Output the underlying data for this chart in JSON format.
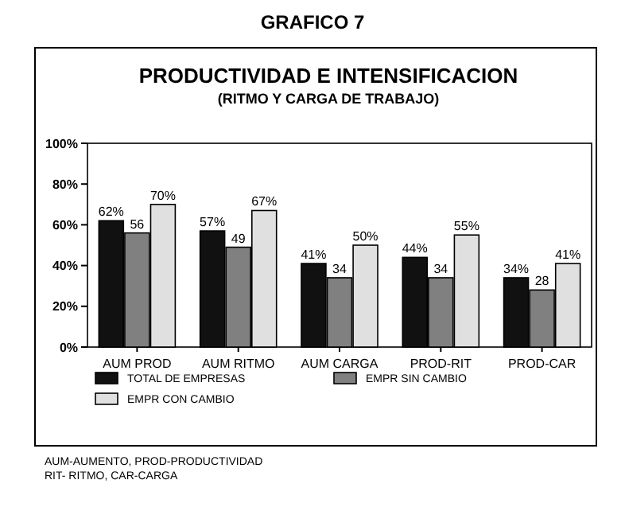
{
  "chart_data": {
    "type": "bar",
    "title": "PRODUCTIVIDAD E INTENSIFICACION",
    "subtitle": "(RITMO Y CARGA DE TRABAJO)",
    "annotations": [
      "GRAFICO 7",
      "AUM-AUMENTO, PROD-PRODUCTIVIDAD",
      "RIT- RITMO, CAR-CARGA"
    ],
    "categories": [
      "AUM PROD",
      "AUM RITMO",
      "AUM CARGA",
      "PROD-RIT",
      "PROD-CAR"
    ],
    "series": [
      {
        "name": "TOTAL DE EMPRESAS",
        "color": "#111111",
        "values": [
          62,
          57,
          41,
          44,
          34
        ],
        "value_labels": [
          "62%",
          "57%",
          "41%",
          "44%",
          "34%"
        ]
      },
      {
        "name": "EMPR SIN CAMBIO",
        "color": "#808080",
        "values": [
          56,
          49,
          34,
          34,
          28
        ],
        "value_labels": [
          "56",
          "49",
          "34",
          "34",
          "28"
        ]
      },
      {
        "name": "EMPR CON CAMBIO",
        "color": "#e0e0e0",
        "values": [
          70,
          67,
          50,
          55,
          41
        ],
        "value_labels": [
          "70%",
          "67%",
          "50%",
          "55%",
          "41%"
        ]
      }
    ],
    "ylim": [
      0,
      100
    ],
    "yticks": [
      {
        "value": 0,
        "label": "0%"
      },
      {
        "value": 20,
        "label": "20%"
      },
      {
        "value": 40,
        "label": "40%"
      },
      {
        "value": 60,
        "label": "60%"
      },
      {
        "value": 80,
        "label": "80%"
      },
      {
        "value": 100,
        "label": "100%"
      }
    ],
    "legend": "bottom",
    "grid": false
  }
}
